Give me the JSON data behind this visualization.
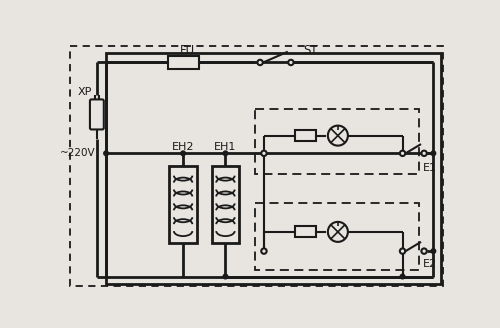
{
  "bg_color": "#e8e5e0",
  "line_color": "#1a1a1a",
  "title_fu": "FU",
  "title_st": "ST",
  "label_xp": "XP",
  "label_220v": "~220V",
  "label_eh2": "EH2",
  "label_eh1": "EH1",
  "label_e1": "E1",
  "label_e2": "E2"
}
